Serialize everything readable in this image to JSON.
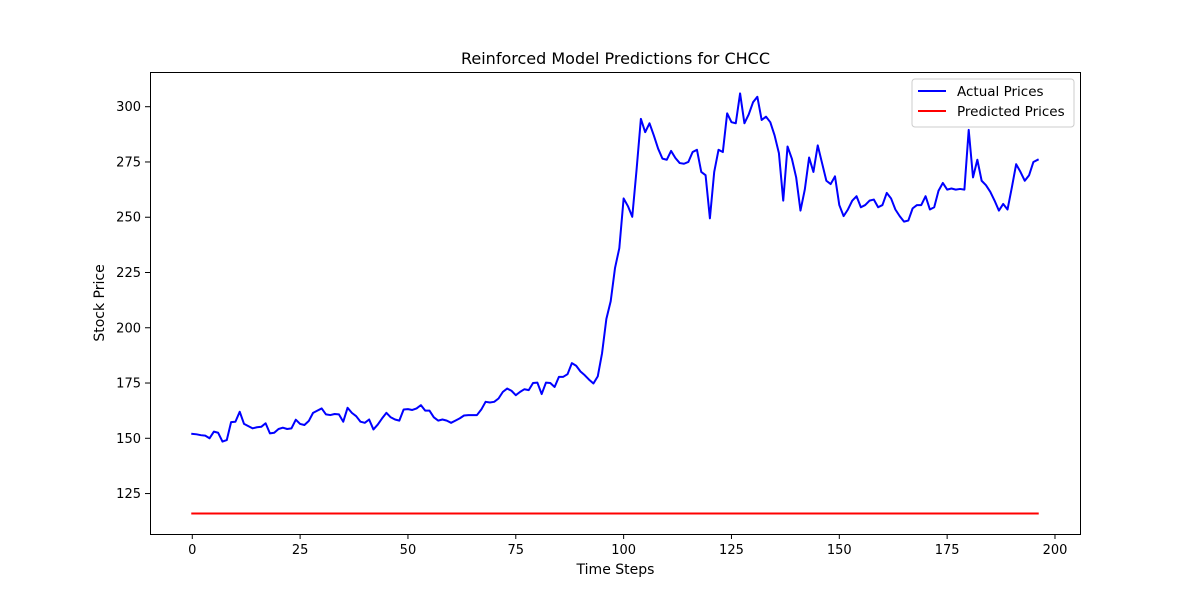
{
  "chart_data": {
    "type": "line",
    "title": "Reinforced Model Predictions for CHCC",
    "xlabel": "Time Steps",
    "ylabel": "Stock Price",
    "xlim": [
      -9.8,
      205.8
    ],
    "ylim": [
      106.7,
      315.7
    ],
    "xticks": [
      0,
      25,
      50,
      75,
      100,
      125,
      150,
      175,
      200
    ],
    "yticks": [
      125,
      150,
      175,
      200,
      225,
      250,
      275,
      300
    ],
    "grid": false,
    "legend_position": "top-right",
    "series": [
      {
        "name": "Actual Prices",
        "color": "#0000ff",
        "x_start": 0,
        "x_step": 1,
        "values": [
          152,
          151.8,
          151.4,
          151.2,
          150,
          153,
          152.5,
          148.5,
          149.2,
          157.3,
          157.5,
          162,
          156.5,
          155.5,
          154.5,
          155,
          155.2,
          156.8,
          152.2,
          152.5,
          154.2,
          154.8,
          154.2,
          154.5,
          158.4,
          156.5,
          156,
          157.8,
          161.5,
          162.5,
          163.5,
          160.8,
          160.5,
          161,
          160.8,
          157.5,
          163.8,
          161.5,
          160,
          157.5,
          157,
          158.5,
          154,
          156.2,
          159,
          161.5,
          159.5,
          158.5,
          158,
          163,
          163.2,
          162.8,
          163.5,
          165,
          162.5,
          162.5,
          159.5,
          158,
          158.5,
          158,
          157,
          158,
          159,
          160.3,
          160.5,
          160.5,
          160.5,
          163,
          166.5,
          166.2,
          166.5,
          168,
          171,
          172.5,
          171.5,
          169.5,
          171,
          172.2,
          171.8,
          175,
          175.2,
          170,
          175.2,
          175,
          173.2,
          177.8,
          177.8,
          179,
          184,
          182.8,
          180.2,
          178.5,
          176.5,
          174.8,
          178,
          188.5,
          204,
          212,
          227,
          236,
          258.5,
          255,
          250.2,
          271.5,
          294.5,
          288.5,
          292.5,
          287,
          281,
          276.5,
          276,
          280,
          276.8,
          274.5,
          274.2,
          275,
          279.5,
          280.5,
          270.5,
          269,
          249.5,
          270.5,
          280.5,
          279.5,
          297,
          293,
          292.5,
          306,
          292.5,
          296.5,
          302,
          304.5,
          294,
          295.5,
          293,
          287,
          279,
          257.5,
          282,
          276.5,
          268,
          253,
          262.5,
          277,
          270.5,
          282.5,
          274.5,
          266.5,
          265,
          268.5,
          255.5,
          250.5,
          253.5,
          257.5,
          259.5,
          254.5,
          255.5,
          257.5,
          258,
          254.5,
          255.5,
          261,
          258.5,
          253.5,
          250.5,
          248,
          248.5,
          254,
          255.5,
          255.5,
          259.5,
          253.5,
          254.5,
          262,
          265.5,
          262.5,
          263,
          262.5,
          262.8,
          262.5,
          289.5,
          268,
          276,
          266.5,
          264.5,
          261.5,
          257.5,
          253,
          256,
          253.5,
          263.5,
          274,
          270.5,
          266.5,
          269,
          275,
          276
        ]
      },
      {
        "name": "Predicted Prices",
        "color": "#ff0000",
        "x_start": 0,
        "x_step": 1,
        "constant_value": 116,
        "count": 197
      }
    ]
  }
}
